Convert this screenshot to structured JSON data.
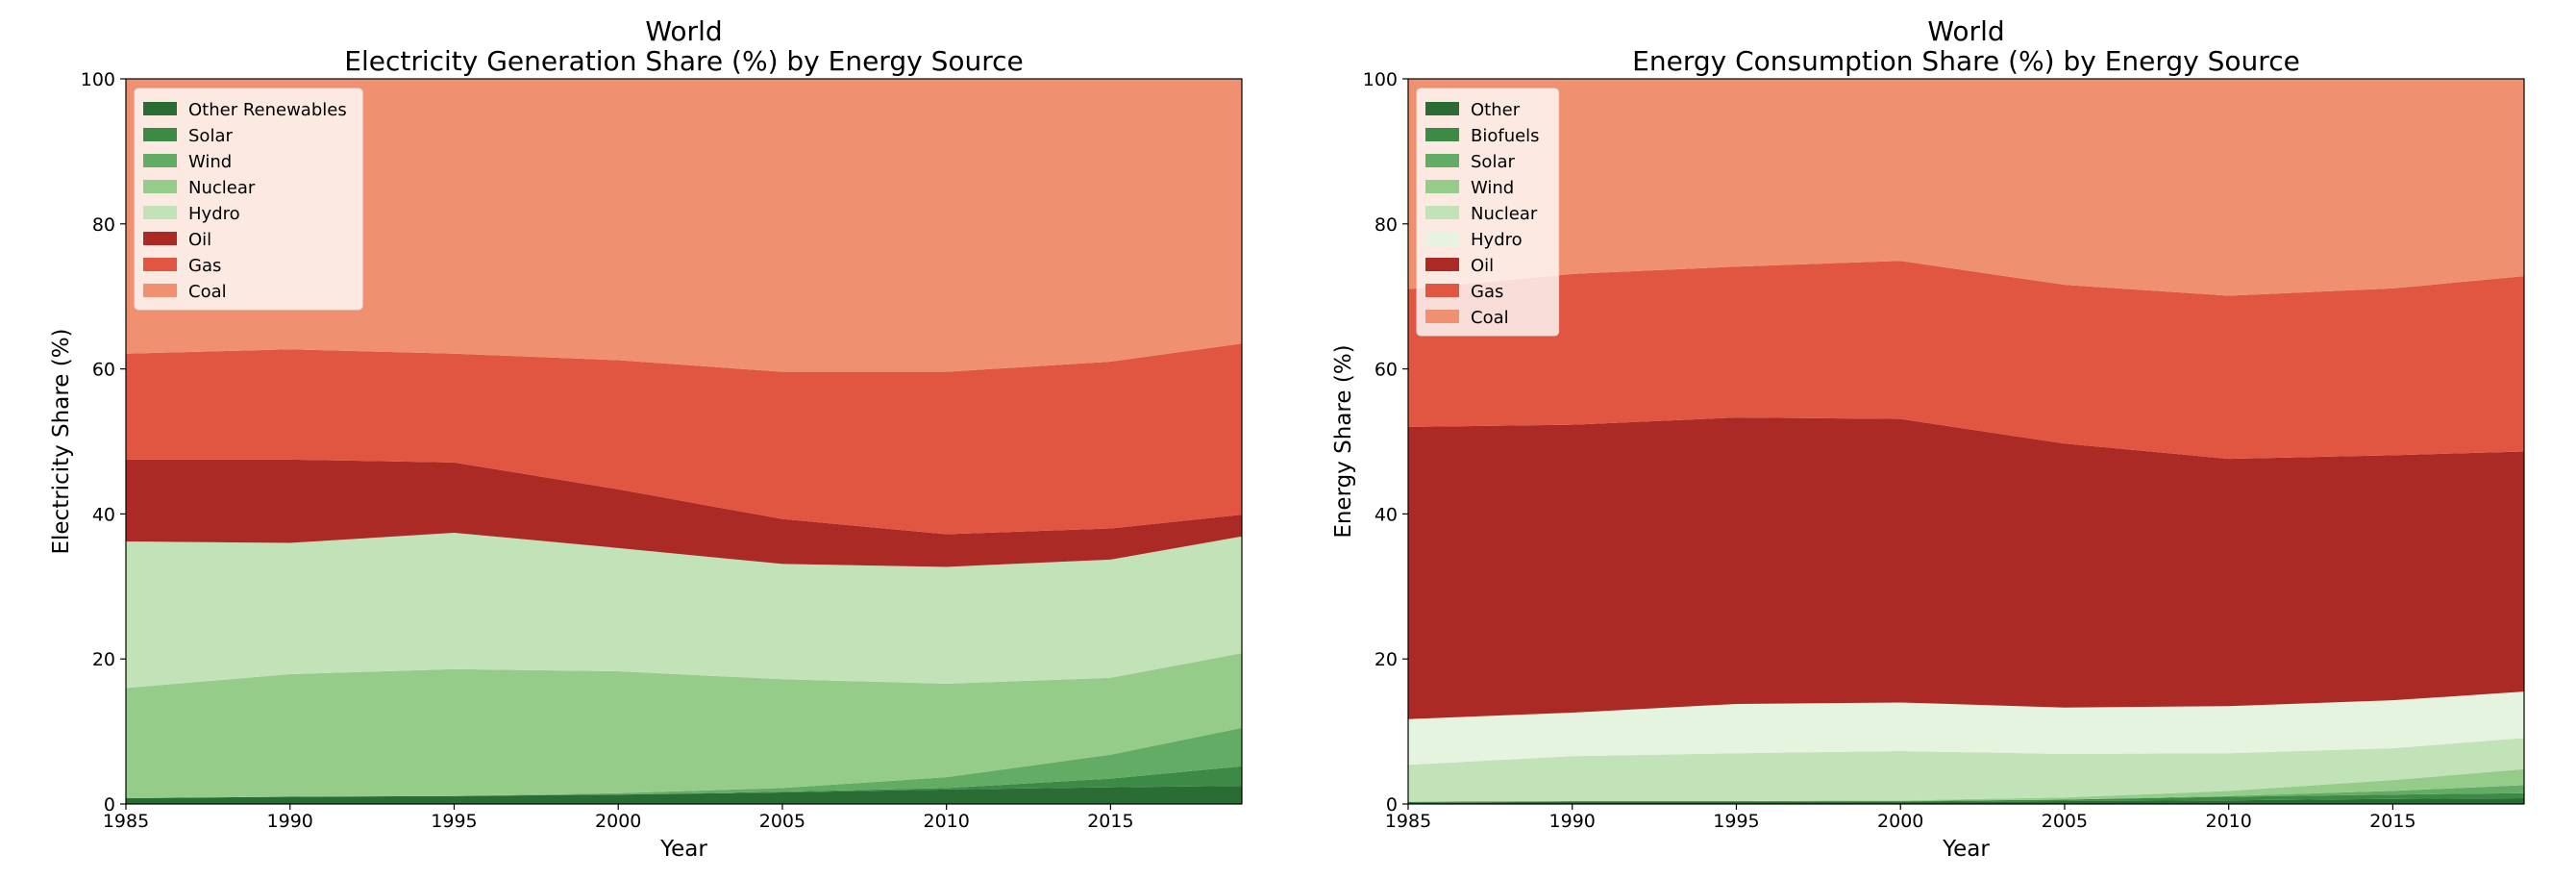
{
  "chart_data": [
    {
      "type": "area",
      "title": "World",
      "subtitle": "Electricity Generation Share (%) by Energy Source",
      "xlabel": "Year",
      "ylabel": "Electricity Share (%)",
      "xlim": [
        1985,
        2019
      ],
      "ylim": [
        0,
        100
      ],
      "xticks": [
        "1985",
        "1990",
        "1995",
        "2000",
        "2005",
        "2010",
        "2015"
      ],
      "yticks": [
        "0",
        "20",
        "40",
        "60",
        "80",
        "100"
      ],
      "legend_position": "top-left",
      "stacked": true,
      "x": [
        1985,
        1990,
        1995,
        2000,
        2005,
        2010,
        2015,
        2019
      ],
      "series": [
        {
          "name": "Other Renewables",
          "color": "#2b6b34",
          "values": [
            0.8,
            1.0,
            1.1,
            1.3,
            1.6,
            2.0,
            2.3,
            2.5
          ]
        },
        {
          "name": "Solar",
          "color": "#3d8a46",
          "values": [
            0.0,
            0.0,
            0.0,
            0.0,
            0.1,
            0.2,
            1.2,
            2.7
          ]
        },
        {
          "name": "Wind",
          "color": "#62ac66",
          "values": [
            0.0,
            0.0,
            0.0,
            0.2,
            0.5,
            1.5,
            3.3,
            5.3
          ]
        },
        {
          "name": "Nuclear",
          "color": "#96cc8a",
          "values": [
            15.2,
            16.9,
            17.5,
            16.8,
            15.0,
            12.9,
            10.6,
            10.3
          ]
        },
        {
          "name": "Hydro",
          "color": "#c2e3b8",
          "values": [
            20.2,
            18.1,
            18.8,
            17.0,
            15.9,
            16.1,
            16.3,
            16.1
          ]
        },
        {
          "name": "Oil",
          "color": "#ac2a25",
          "values": [
            11.3,
            11.5,
            9.7,
            8.1,
            6.2,
            4.5,
            4.3,
            3.0
          ]
        },
        {
          "name": "Gas",
          "color": "#e05640",
          "values": [
            14.6,
            15.2,
            15.0,
            17.8,
            20.3,
            22.4,
            23.0,
            23.6
          ]
        },
        {
          "name": "Coal",
          "color": "#ef9071",
          "values": [
            37.9,
            37.3,
            37.9,
            38.8,
            40.4,
            40.4,
            39.0,
            36.5
          ]
        }
      ]
    },
    {
      "type": "area",
      "title": "World",
      "subtitle": "Energy Consumption Share (%) by Energy Source",
      "xlabel": "Year",
      "ylabel": "Energy Share (%)",
      "xlim": [
        1985,
        2019
      ],
      "ylim": [
        0,
        100
      ],
      "xticks": [
        "1985",
        "1990",
        "1995",
        "2000",
        "2005",
        "2010",
        "2015"
      ],
      "yticks": [
        "0",
        "20",
        "40",
        "60",
        "80",
        "100"
      ],
      "legend_position": "top-left",
      "stacked": true,
      "x": [
        1985,
        1990,
        1995,
        2000,
        2005,
        2010,
        2015,
        2019
      ],
      "series": [
        {
          "name": "Other",
          "color": "#2b6b34",
          "values": [
            0.2,
            0.3,
            0.3,
            0.3,
            0.4,
            0.5,
            0.7,
            0.8
          ]
        },
        {
          "name": "Biofuels",
          "color": "#3d8a46",
          "values": [
            0.1,
            0.1,
            0.1,
            0.1,
            0.2,
            0.5,
            0.6,
            0.7
          ]
        },
        {
          "name": "Solar",
          "color": "#62ac66",
          "values": [
            0.0,
            0.0,
            0.0,
            0.0,
            0.0,
            0.1,
            0.5,
            1.1
          ]
        },
        {
          "name": "Wind",
          "color": "#96cc8a",
          "values": [
            0.0,
            0.0,
            0.0,
            0.1,
            0.3,
            0.7,
            1.5,
            2.2
          ]
        },
        {
          "name": "Nuclear",
          "color": "#c2e3b8",
          "values": [
            5.1,
            6.2,
            6.6,
            6.8,
            6.0,
            5.2,
            4.4,
            4.3
          ]
        },
        {
          "name": "Hydro",
          "color": "#e5f4df",
          "values": [
            6.3,
            6.0,
            6.8,
            6.7,
            6.4,
            6.5,
            6.6,
            6.4
          ]
        },
        {
          "name": "Oil",
          "color": "#ac2a25",
          "values": [
            40.3,
            39.7,
            39.5,
            39.1,
            36.4,
            34.1,
            33.8,
            33.1
          ]
        },
        {
          "name": "Gas",
          "color": "#e05640",
          "values": [
            19.0,
            20.8,
            20.8,
            21.8,
            21.9,
            22.5,
            23.0,
            24.2
          ]
        },
        {
          "name": "Coal",
          "color": "#ef9071",
          "values": [
            29.0,
            26.9,
            25.9,
            25.1,
            28.4,
            29.9,
            28.9,
            27.2
          ]
        }
      ]
    }
  ]
}
